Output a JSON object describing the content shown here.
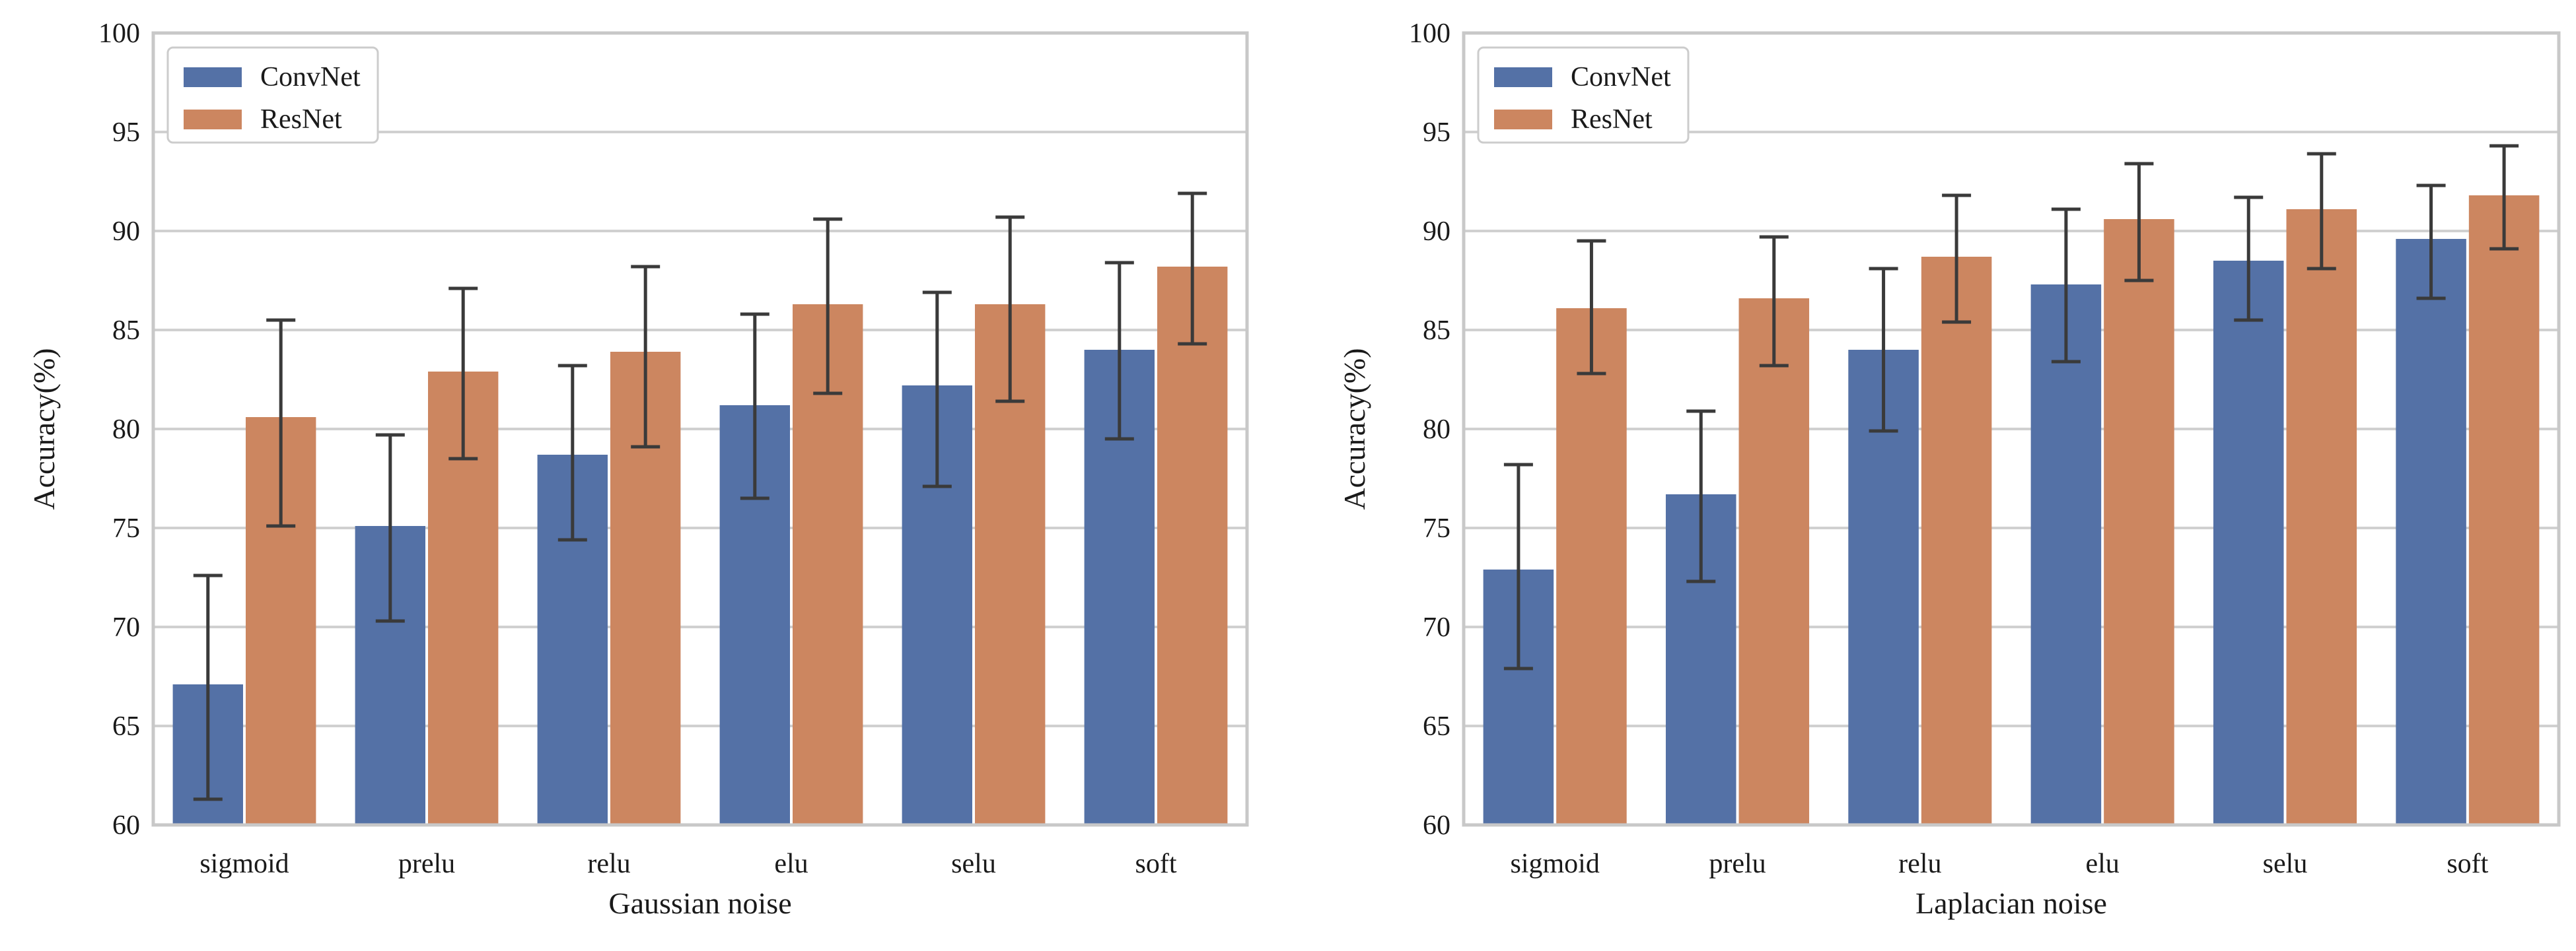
{
  "colors": {
    "convnet": "#5471a6",
    "resnet": "#cc8660",
    "grid": "#d0d0d0",
    "frame": "#c8c8c8",
    "errorbar": "#3a3a3a"
  },
  "chart_data": [
    {
      "type": "bar",
      "title": "",
      "xlabel": "Gaussian noise",
      "ylabel": "Accuracy(%)",
      "ylim": [
        60,
        100
      ],
      "yticks": [
        60,
        65,
        70,
        75,
        80,
        85,
        90,
        95,
        100
      ],
      "grid": true,
      "legend_position": "top-left",
      "categories": [
        "sigmoid",
        "prelu",
        "relu",
        "elu",
        "selu",
        "soft"
      ],
      "series": [
        {
          "name": "ConvNet",
          "values": [
            67.1,
            75.1,
            78.7,
            81.2,
            82.2,
            84.0
          ],
          "err_low": [
            61.3,
            70.3,
            74.4,
            76.5,
            77.1,
            79.5
          ],
          "err_high": [
            72.6,
            79.7,
            83.2,
            85.8,
            86.9,
            88.4
          ]
        },
        {
          "name": "ResNet",
          "values": [
            80.6,
            82.9,
            83.9,
            86.3,
            86.3,
            88.2
          ],
          "err_low": [
            75.1,
            78.5,
            79.1,
            81.8,
            81.4,
            84.3
          ],
          "err_high": [
            85.5,
            87.1,
            88.2,
            90.6,
            90.7,
            91.9
          ]
        }
      ]
    },
    {
      "type": "bar",
      "title": "",
      "xlabel": "Laplacian noise",
      "ylabel": "Accuracy(%)",
      "ylim": [
        60,
        100
      ],
      "yticks": [
        60,
        65,
        70,
        75,
        80,
        85,
        90,
        95,
        100
      ],
      "grid": true,
      "legend_position": "top-left",
      "categories": [
        "sigmoid",
        "prelu",
        "relu",
        "elu",
        "selu",
        "soft"
      ],
      "series": [
        {
          "name": "ConvNet",
          "values": [
            72.9,
            76.7,
            84.0,
            87.3,
            88.5,
            89.6
          ],
          "err_low": [
            67.9,
            72.3,
            79.9,
            83.4,
            85.5,
            86.6
          ],
          "err_high": [
            78.2,
            80.9,
            88.1,
            91.1,
            91.7,
            92.3
          ]
        },
        {
          "name": "ResNet",
          "values": [
            86.1,
            86.6,
            88.7,
            90.6,
            91.1,
            91.8
          ],
          "err_low": [
            82.8,
            83.2,
            85.4,
            87.5,
            88.1,
            89.1
          ],
          "err_high": [
            89.5,
            89.7,
            91.8,
            93.4,
            93.9,
            94.3
          ]
        }
      ]
    }
  ]
}
